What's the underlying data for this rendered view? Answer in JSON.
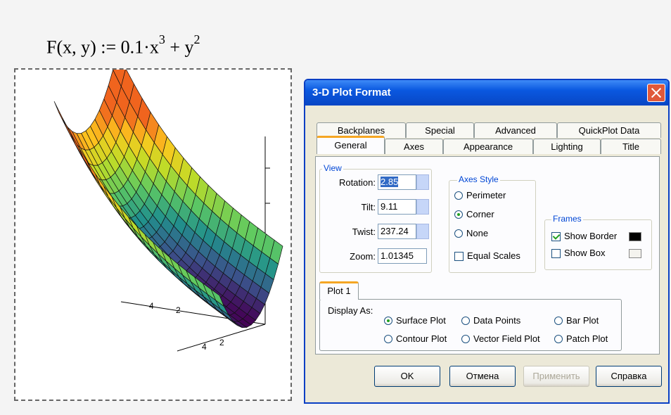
{
  "formula": {
    "lhs": "F(x, y) :=",
    "term_a": "0.1·x",
    "exp_a": "3",
    "term_b": "+ y",
    "exp_b": "2"
  },
  "plot": {
    "axis_labels": [
      "4",
      "2",
      "4",
      "2"
    ]
  },
  "dialog": {
    "title": "3-D Plot Format",
    "tabs_back": [
      "Backplanes",
      "Special",
      "Advanced",
      "QuickPlot Data"
    ],
    "tabs_front": [
      "General",
      "Axes",
      "Appearance",
      "Lighting",
      "Title"
    ],
    "view": {
      "label": "View",
      "fields": [
        {
          "label": "Rotation:",
          "value": "2.85"
        },
        {
          "label": "Tilt:",
          "value": "9.11"
        },
        {
          "label": "Twist:",
          "value": "237.24"
        },
        {
          "label": "Zoom:",
          "value": "1.01345"
        }
      ]
    },
    "axes_style": {
      "label": "Axes Style",
      "options": [
        "Perimeter",
        "Corner",
        "None"
      ],
      "selected": 1,
      "equal_scales": "Equal Scales",
      "equal_scales_checked": false
    },
    "frames": {
      "label": "Frames",
      "show_border": "Show Border",
      "show_border_checked": true,
      "show_box": "Show Box",
      "show_box_checked": false
    },
    "plot_tab": "Plot 1",
    "display_as": {
      "label": "Display As:",
      "options": [
        "Surface Plot",
        "Data Points",
        "Bar Plot",
        "Contour Plot",
        "Vector Field Plot",
        "Patch Plot"
      ],
      "selected": 0
    },
    "buttons": [
      "OK",
      "Отмена",
      "Применить",
      "Справка"
    ]
  }
}
